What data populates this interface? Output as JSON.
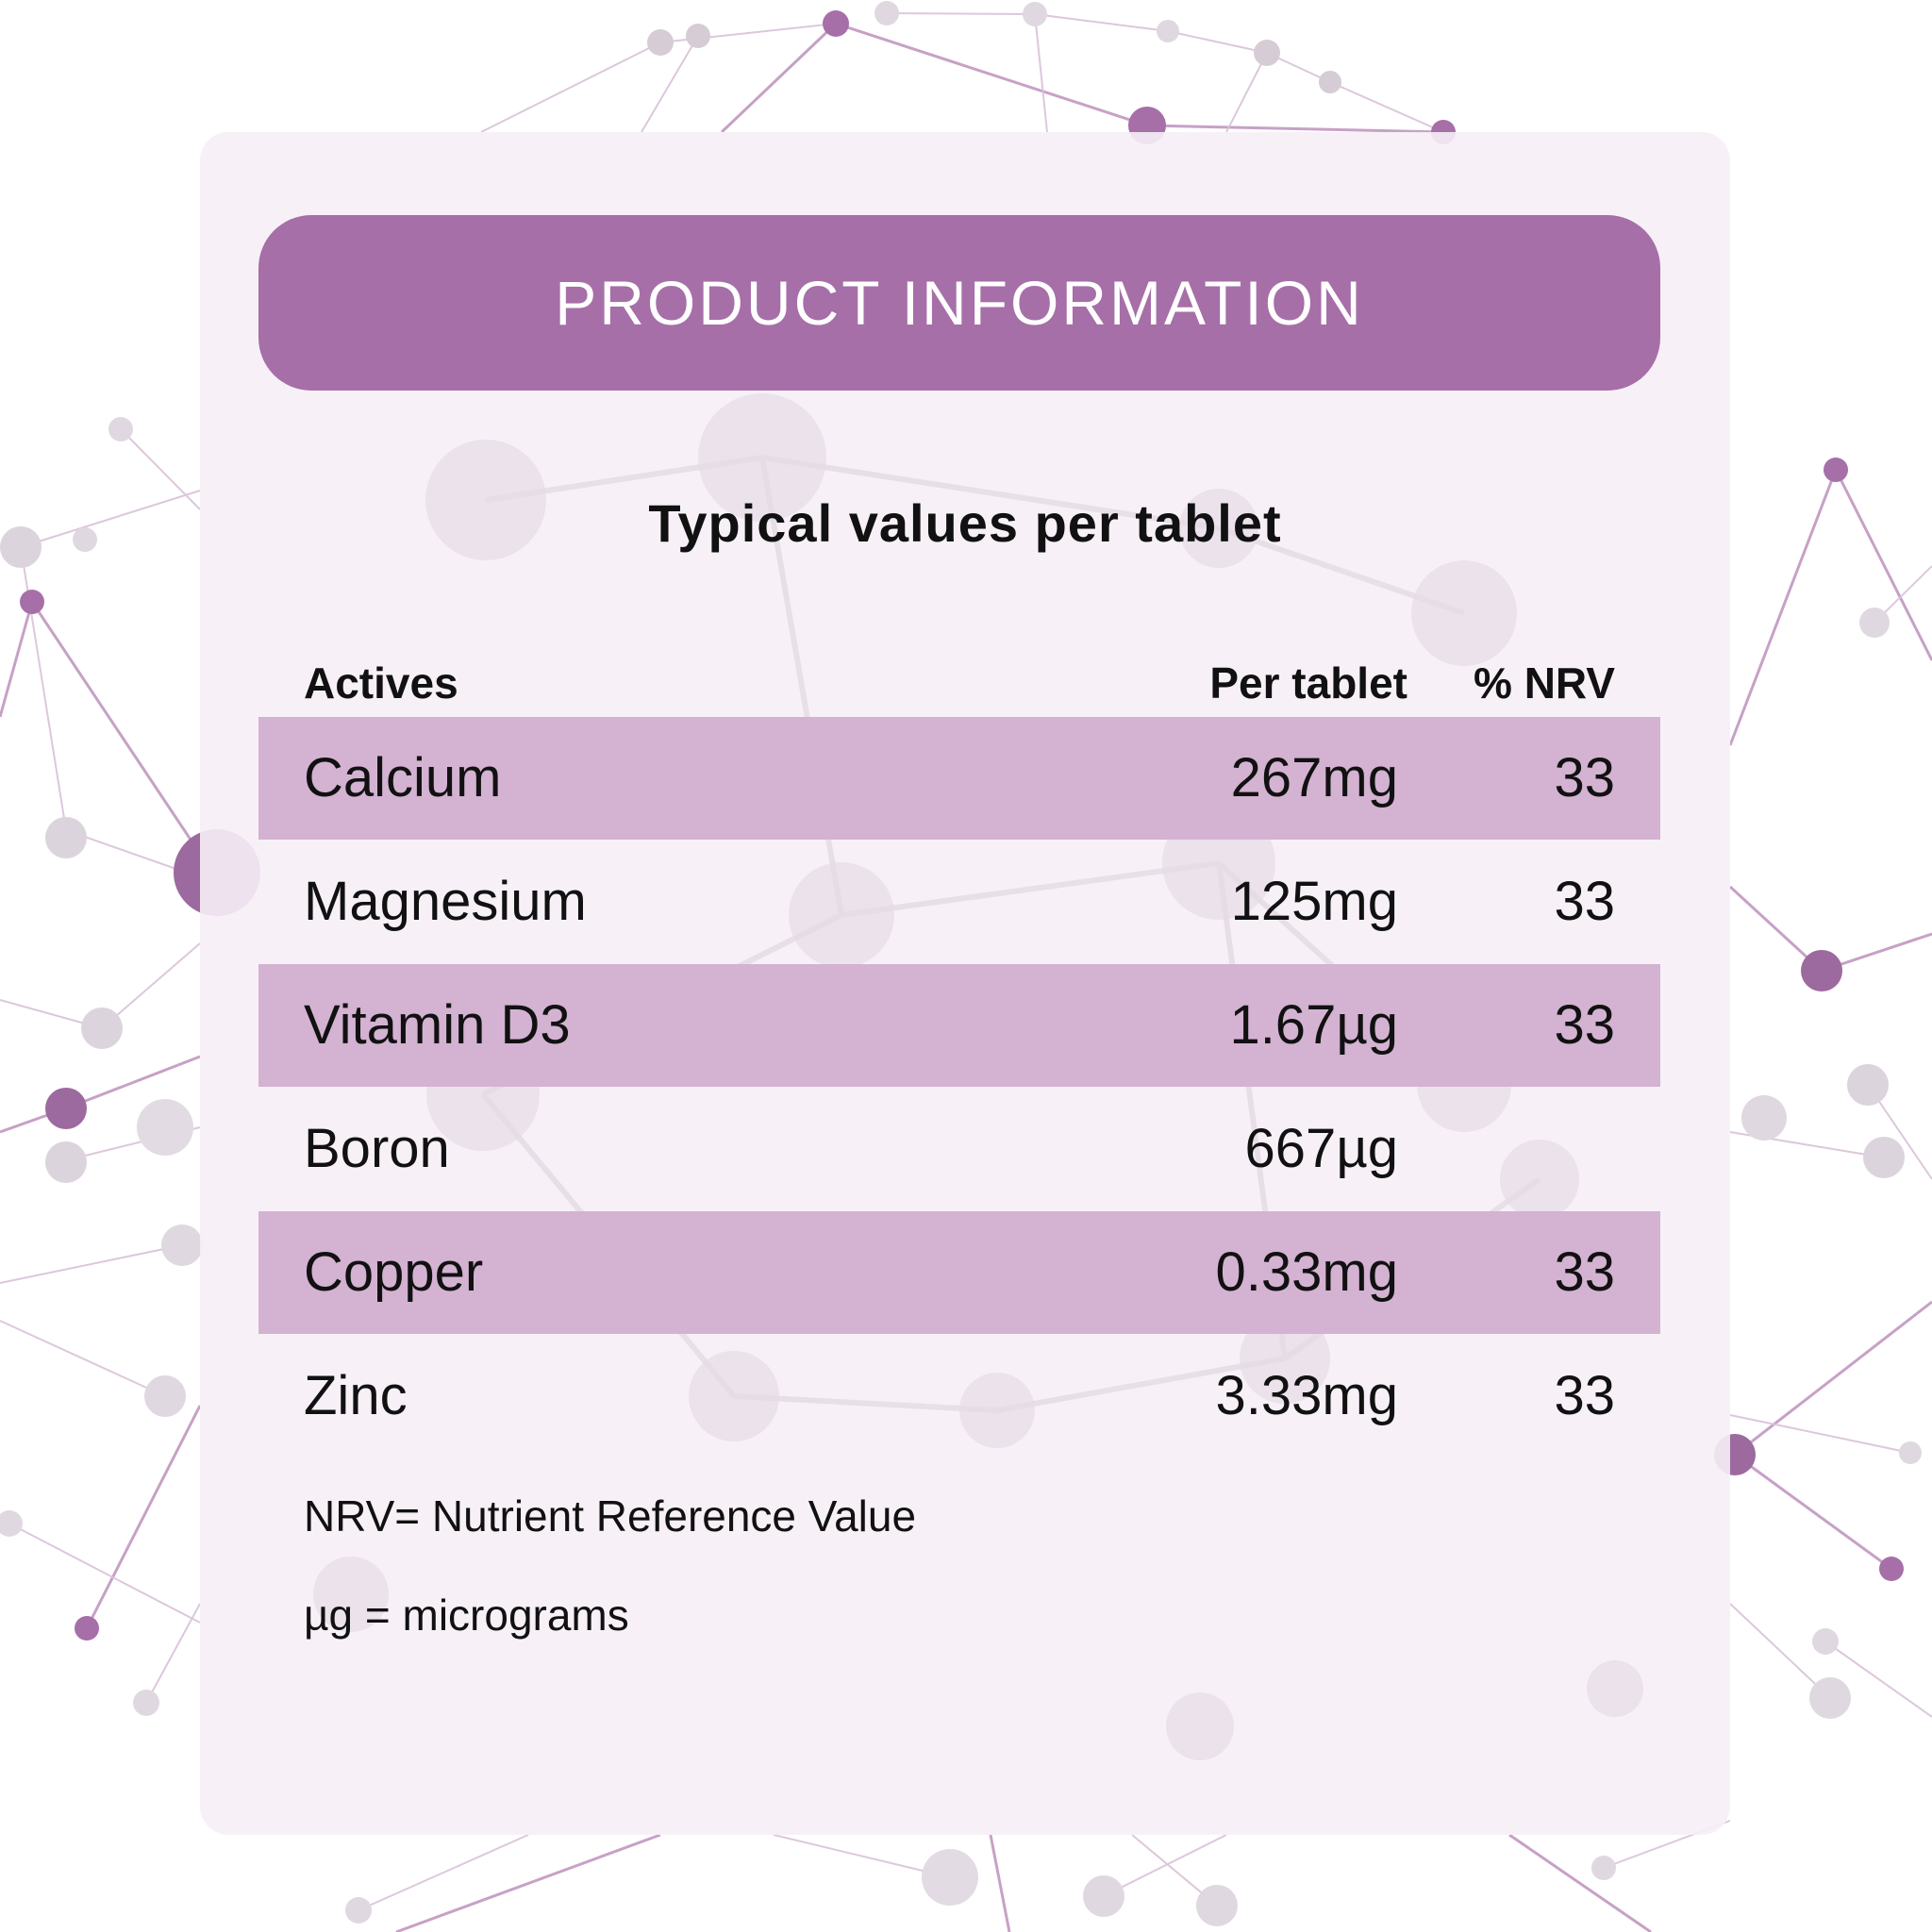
{
  "header": {
    "title": "PRODUCT INFORMATION"
  },
  "subtitle": "Typical values per tablet",
  "table": {
    "headers": {
      "actives": "Actives",
      "per_tablet": "Per tablet",
      "nrv": "% NRV"
    },
    "rows": [
      {
        "name": "Calcium",
        "amount": "267mg",
        "nrv": "33",
        "shaded": true
      },
      {
        "name": "Magnesium",
        "amount": "125mg",
        "nrv": "33",
        "shaded": false
      },
      {
        "name": "Vitamin D3",
        "amount": "1.67µg",
        "nrv": "33",
        "shaded": true
      },
      {
        "name": "Boron",
        "amount": "667µg",
        "nrv": "",
        "shaded": false
      },
      {
        "name": "Copper",
        "amount": "0.33mg",
        "nrv": "33",
        "shaded": true
      },
      {
        "name": "Zinc",
        "amount": "3.33mg",
        "nrv": "33",
        "shaded": false
      }
    ]
  },
  "footnotes": {
    "nrv": "NRV= Nutrient Reference Value",
    "ug": "µg = micrograms"
  },
  "colors": {
    "accent": "#a66fa8",
    "row_shade": "#d4b2d2",
    "card": "#f6eff6"
  }
}
